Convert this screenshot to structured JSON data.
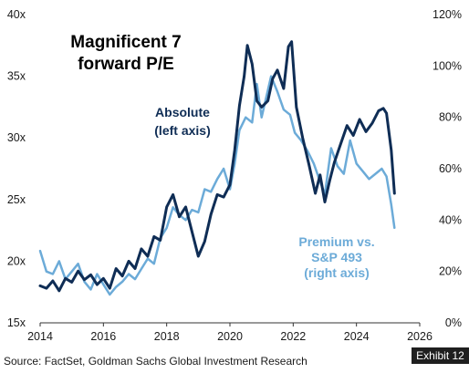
{
  "chart_data": {
    "type": "line",
    "title": "Magnificent 7\nforward P/E",
    "source": "Source: FactSet, Goldman Sachs Global Investment Research",
    "exhibit": "Exhibit 12",
    "x_ticks": [
      "2014",
      "2016",
      "2018",
      "2020",
      "2022",
      "2024",
      "2026"
    ],
    "xlim": [
      2014,
      2026
    ],
    "y_left": {
      "ticks": [
        "15x",
        "20x",
        "25x",
        "30x",
        "35x",
        "40x"
      ],
      "ylim": [
        15,
        40
      ]
    },
    "y_right": {
      "ticks": [
        "0%",
        "20%",
        "40%",
        "60%",
        "80%",
        "100%",
        "120%"
      ],
      "ylim": [
        0,
        120
      ]
    },
    "grid": false,
    "series": [
      {
        "name": "Absolute\n(left axis)",
        "axis": "left",
        "color": "#0f2d55",
        "points": [
          [
            2014.0,
            18.0
          ],
          [
            2014.2,
            17.8
          ],
          [
            2014.4,
            18.4
          ],
          [
            2014.6,
            17.6
          ],
          [
            2014.8,
            18.6
          ],
          [
            2015.0,
            18.3
          ],
          [
            2015.2,
            19.2
          ],
          [
            2015.4,
            18.5
          ],
          [
            2015.6,
            18.9
          ],
          [
            2015.8,
            18.1
          ],
          [
            2016.0,
            18.6
          ],
          [
            2016.2,
            17.8
          ],
          [
            2016.4,
            19.4
          ],
          [
            2016.6,
            18.8
          ],
          [
            2016.8,
            20.0
          ],
          [
            2017.0,
            19.4
          ],
          [
            2017.2,
            21.0
          ],
          [
            2017.4,
            20.4
          ],
          [
            2017.6,
            22.0
          ],
          [
            2017.8,
            21.7
          ],
          [
            2018.0,
            24.4
          ],
          [
            2018.2,
            25.4
          ],
          [
            2018.4,
            23.6
          ],
          [
            2018.6,
            24.4
          ],
          [
            2018.8,
            22.4
          ],
          [
            2019.0,
            20.4
          ],
          [
            2019.2,
            21.6
          ],
          [
            2019.4,
            23.8
          ],
          [
            2019.6,
            25.4
          ],
          [
            2019.8,
            25.2
          ],
          [
            2020.0,
            26.2
          ],
          [
            2020.15,
            29.0
          ],
          [
            2020.3,
            32.6
          ],
          [
            2020.45,
            35.0
          ],
          [
            2020.55,
            37.5
          ],
          [
            2020.7,
            36.0
          ],
          [
            2020.85,
            33.0
          ],
          [
            2021.0,
            32.5
          ],
          [
            2021.2,
            33.0
          ],
          [
            2021.35,
            34.8
          ],
          [
            2021.5,
            35.5
          ],
          [
            2021.7,
            34.0
          ],
          [
            2021.85,
            37.4
          ],
          [
            2021.95,
            37.8
          ],
          [
            2022.1,
            32.5
          ],
          [
            2022.3,
            30.0
          ],
          [
            2022.5,
            27.8
          ],
          [
            2022.7,
            25.5
          ],
          [
            2022.85,
            27.0
          ],
          [
            2023.0,
            24.8
          ],
          [
            2023.15,
            26.5
          ],
          [
            2023.3,
            28.0
          ],
          [
            2023.5,
            29.5
          ],
          [
            2023.7,
            31.0
          ],
          [
            2023.9,
            30.2
          ],
          [
            2024.1,
            31.5
          ],
          [
            2024.3,
            30.5
          ],
          [
            2024.5,
            31.2
          ],
          [
            2024.7,
            32.2
          ],
          [
            2024.85,
            32.4
          ],
          [
            2024.95,
            32.0
          ],
          [
            2025.1,
            29.0
          ],
          [
            2025.2,
            25.5
          ]
        ]
      },
      {
        "name": "Premium vs.\nS&P 493\n(right axis)",
        "axis": "right",
        "color": "#6cabd8",
        "points": [
          [
            2014.0,
            28.0
          ],
          [
            2014.2,
            20.0
          ],
          [
            2014.4,
            19.0
          ],
          [
            2014.6,
            24.0
          ],
          [
            2014.8,
            17.0
          ],
          [
            2015.0,
            20.0
          ],
          [
            2015.2,
            23.0
          ],
          [
            2015.4,
            16.0
          ],
          [
            2015.6,
            13.0
          ],
          [
            2015.8,
            19.0
          ],
          [
            2016.0,
            15.0
          ],
          [
            2016.2,
            11.0
          ],
          [
            2016.4,
            14.0
          ],
          [
            2016.6,
            16.0
          ],
          [
            2016.8,
            19.0
          ],
          [
            2017.0,
            17.0
          ],
          [
            2017.2,
            21.0
          ],
          [
            2017.4,
            25.0
          ],
          [
            2017.6,
            23.0
          ],
          [
            2017.8,
            33.0
          ],
          [
            2018.0,
            37.0
          ],
          [
            2018.2,
            45.0
          ],
          [
            2018.4,
            42.0
          ],
          [
            2018.6,
            40.0
          ],
          [
            2018.8,
            44.0
          ],
          [
            2019.0,
            43.0
          ],
          [
            2019.2,
            52.0
          ],
          [
            2019.4,
            51.0
          ],
          [
            2019.6,
            56.0
          ],
          [
            2019.8,
            60.0
          ],
          [
            2020.0,
            52.0
          ],
          [
            2020.15,
            62.0
          ],
          [
            2020.3,
            75.0
          ],
          [
            2020.5,
            80.0
          ],
          [
            2020.7,
            78.0
          ],
          [
            2020.85,
            93.0
          ],
          [
            2021.0,
            80.0
          ],
          [
            2021.15,
            88.0
          ],
          [
            2021.3,
            96.0
          ],
          [
            2021.5,
            90.0
          ],
          [
            2021.7,
            83.0
          ],
          [
            2021.9,
            81.0
          ],
          [
            2022.05,
            74.0
          ],
          [
            2022.25,
            71.0
          ],
          [
            2022.45,
            67.0
          ],
          [
            2022.65,
            62.0
          ],
          [
            2022.85,
            55.0
          ],
          [
            2023.0,
            50.0
          ],
          [
            2023.2,
            68.0
          ],
          [
            2023.4,
            61.0
          ],
          [
            2023.6,
            58.0
          ],
          [
            2023.8,
            71.0
          ],
          [
            2024.0,
            62.0
          ],
          [
            2024.2,
            59.0
          ],
          [
            2024.4,
            56.0
          ],
          [
            2024.6,
            58.0
          ],
          [
            2024.8,
            60.0
          ],
          [
            2024.95,
            57.0
          ],
          [
            2025.1,
            46.0
          ],
          [
            2025.2,
            37.0
          ]
        ]
      }
    ]
  }
}
